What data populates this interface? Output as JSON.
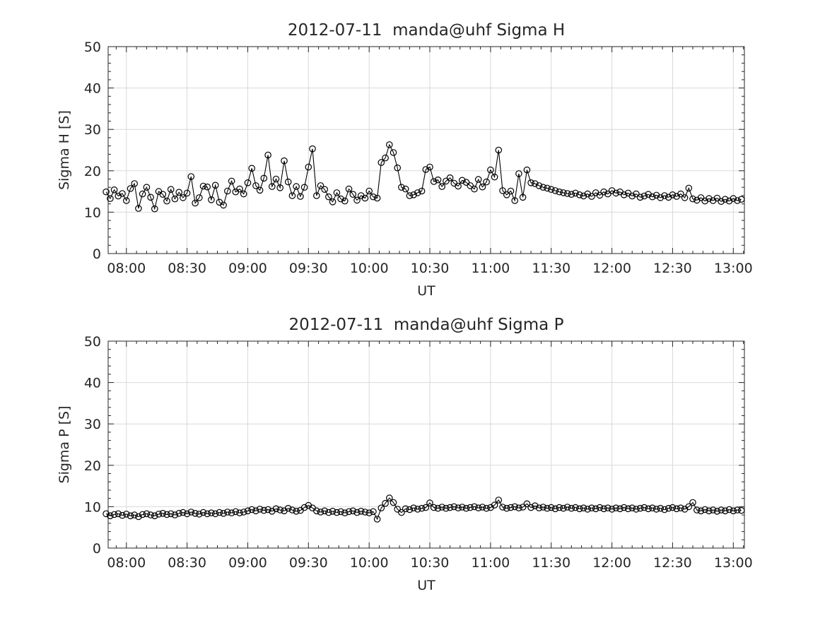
{
  "figure": {
    "background": "#ffffff",
    "axis_color": "#262626",
    "text_color": "#262626",
    "grid_color": "#d9d9d9",
    "data_color": "#000000"
  },
  "chart_data": [
    {
      "type": "line",
      "title": "2012-07-11  manda@uhf Sigma H",
      "ylabel": "Sigma H [S]",
      "xlabel": "UT",
      "marker": "open-circle",
      "grid": true,
      "legend": "none",
      "start_time": "07:50",
      "step_minutes": 2,
      "xlim_minutes": [
        471,
        785.5
      ],
      "ylim": [
        0,
        50
      ],
      "y_ticks": [
        0,
        10,
        20,
        30,
        40,
        50
      ],
      "y_minor_step": 2,
      "x_minor_step_minutes": 5,
      "x_ticks": [
        {
          "minutes": 480,
          "label": "08:00"
        },
        {
          "minutes": 510,
          "label": "08:30"
        },
        {
          "minutes": 540,
          "label": "09:00"
        },
        {
          "minutes": 570,
          "label": "09:30"
        },
        {
          "minutes": 600,
          "label": "10:00"
        },
        {
          "minutes": 630,
          "label": "10:30"
        },
        {
          "minutes": 660,
          "label": "11:00"
        },
        {
          "minutes": 690,
          "label": "11:30"
        },
        {
          "minutes": 720,
          "label": "12:00"
        },
        {
          "minutes": 750,
          "label": "12:30"
        },
        {
          "minutes": 780,
          "label": "13:00"
        }
      ],
      "values": [
        14.9,
        13.3,
        15.4,
        13.9,
        14.5,
        12.8,
        15.7,
        16.9,
        10.9,
        14.4,
        16.0,
        13.6,
        10.8,
        15.0,
        14.3,
        12.7,
        15.5,
        13.2,
        14.8,
        13.5,
        14.6,
        18.6,
        12.2,
        13.5,
        16.3,
        16.1,
        13.0,
        16.5,
        12.4,
        11.7,
        15.1,
        17.5,
        14.9,
        15.6,
        14.4,
        17.1,
        20.6,
        16.4,
        15.3,
        18.2,
        23.8,
        16.2,
        18.0,
        15.9,
        22.4,
        17.3,
        14.0,
        16.2,
        13.8,
        16.0,
        20.9,
        25.3,
        14.0,
        16.4,
        15.5,
        13.7,
        12.5,
        14.7,
        13.2,
        12.7,
        15.6,
        14.3,
        12.9,
        14.0,
        13.4,
        15.1,
        13.7,
        13.4,
        22.0,
        23.1,
        26.3,
        24.4,
        20.7,
        16.0,
        15.6,
        14.0,
        14.2,
        14.7,
        15.1,
        20.3,
        20.9,
        17.4,
        17.8,
        16.2,
        17.5,
        18.3,
        17.0,
        16.3,
        17.7,
        17.2,
        16.4,
        15.6,
        17.9,
        16.1,
        17.3,
        20.2,
        18.5,
        25.0,
        15.2,
        14.2,
        15.1,
        12.8,
        19.3,
        13.6,
        20.2,
        17.1,
        16.9,
        16.4,
        16.0,
        15.8,
        15.5,
        15.2,
        14.9,
        14.7,
        14.5,
        14.3,
        14.6,
        14.2,
        13.9,
        14.4,
        13.8,
        14.7,
        14.1,
        14.9,
        14.4,
        15.2,
        14.6,
        14.9,
        14.2,
        14.6,
        13.9,
        14.4,
        13.6,
        13.9,
        14.3,
        13.7,
        14.1,
        13.5,
        14.0,
        13.6,
        14.2,
        13.8,
        14.4,
        13.5,
        15.8,
        13.2,
        12.9,
        13.5,
        12.7,
        13.3,
        12.8,
        13.4,
        12.6,
        13.1,
        12.7,
        13.3,
        12.8,
        13.1
      ]
    },
    {
      "type": "line",
      "title": "2012-07-11  manda@uhf Sigma P",
      "ylabel": "Sigma P [S]",
      "xlabel": "UT",
      "marker": "open-circle",
      "grid": true,
      "legend": "none",
      "start_time": "07:50",
      "step_minutes": 2,
      "xlim_minutes": [
        471,
        785.5
      ],
      "ylim": [
        0,
        50
      ],
      "y_ticks": [
        0,
        10,
        20,
        30,
        40,
        50
      ],
      "y_minor_step": 2,
      "x_minor_step_minutes": 5,
      "x_ticks": [
        {
          "minutes": 480,
          "label": "08:00"
        },
        {
          "minutes": 510,
          "label": "08:30"
        },
        {
          "minutes": 540,
          "label": "09:00"
        },
        {
          "minutes": 570,
          "label": "09:30"
        },
        {
          "minutes": 600,
          "label": "10:00"
        },
        {
          "minutes": 630,
          "label": "10:30"
        },
        {
          "minutes": 660,
          "label": "11:00"
        },
        {
          "minutes": 690,
          "label": "11:30"
        },
        {
          "minutes": 720,
          "label": "12:00"
        },
        {
          "minutes": 750,
          "label": "12:30"
        },
        {
          "minutes": 780,
          "label": "13:00"
        }
      ],
      "values": [
        8.3,
        7.8,
        8.1,
        8.3,
        7.9,
        8.2,
        7.8,
        8.0,
        7.6,
        8.1,
        8.3,
        8.0,
        7.8,
        8.2,
        8.4,
        8.1,
        8.3,
        8.0,
        8.4,
        8.6,
        8.3,
        8.7,
        8.4,
        8.2,
        8.6,
        8.3,
        8.5,
        8.3,
        8.6,
        8.4,
        8.7,
        8.5,
        8.8,
        8.5,
        8.7,
        9.0,
        9.3,
        9.0,
        9.4,
        9.1,
        9.3,
        8.9,
        9.5,
        9.2,
        9.0,
        9.6,
        9.2,
        8.9,
        9.1,
        9.8,
        10.3,
        9.7,
        9.0,
        8.7,
        9.0,
        8.6,
        8.9,
        8.6,
        8.8,
        8.5,
        8.8,
        9.0,
        8.6,
        8.9,
        8.7,
        8.5,
        8.8,
        7.0,
        9.7,
        10.8,
        12.1,
        11.0,
        9.4,
        8.6,
        9.5,
        9.3,
        9.7,
        9.4,
        9.6,
        9.8,
        10.9,
        9.8,
        9.6,
        9.9,
        9.6,
        9.8,
        10.0,
        9.7,
        9.9,
        9.6,
        9.8,
        10.0,
        9.7,
        9.9,
        9.6,
        9.8,
        10.4,
        11.6,
        9.9,
        9.6,
        9.8,
        10.0,
        9.7,
        9.9,
        10.7,
        9.8,
        10.2,
        9.7,
        9.9,
        9.6,
        9.8,
        9.5,
        9.8,
        9.6,
        9.9,
        9.6,
        9.8,
        9.5,
        9.7,
        9.4,
        9.7,
        9.5,
        9.8,
        9.5,
        9.7,
        9.4,
        9.7,
        9.5,
        9.8,
        9.5,
        9.7,
        9.4,
        9.6,
        9.8,
        9.5,
        9.7,
        9.4,
        9.6,
        9.3,
        9.6,
        9.8,
        9.5,
        9.7,
        9.4,
        10.0,
        11.0,
        9.2,
        9.0,
        9.3,
        9.0,
        9.2,
        8.9,
        9.2,
        9.0,
        9.3,
        9.0,
        9.2,
        9.1
      ]
    }
  ]
}
